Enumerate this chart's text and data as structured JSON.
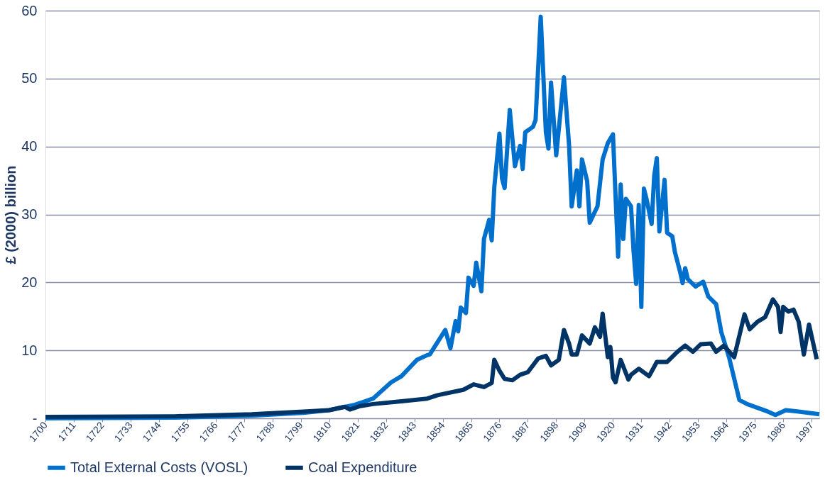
{
  "chart_data": {
    "type": "line",
    "ylabel": "£ (2000) billion",
    "xlim": [
      1700,
      2000
    ],
    "xticks": [
      1700,
      1711,
      1722,
      1733,
      1744,
      1755,
      1766,
      1777,
      1788,
      1799,
      1810,
      1821,
      1832,
      1843,
      1854,
      1865,
      1876,
      1887,
      1898,
      1909,
      1920,
      1931,
      1942,
      1953,
      1964,
      1975,
      1986,
      1997
    ],
    "ylim": [
      0,
      60
    ],
    "yticks": [
      {
        "value": 0,
        "label": "-"
      },
      10,
      20,
      30,
      40,
      50,
      60
    ],
    "grid": "y",
    "legend": "bottom",
    "line_style": "solid",
    "marker": "none",
    "series": [
      {
        "name": "Total External Costs (VOSL)",
        "color": "#0070cc",
        "x": [
          1700,
          1750,
          1780,
          1800,
          1810,
          1820,
          1827,
          1834,
          1838,
          1844,
          1848,
          1849,
          1855,
          1857,
          1859,
          1860,
          1861,
          1863,
          1864,
          1866,
          1867,
          1869,
          1870,
          1872,
          1873,
          1874,
          1876,
          1877,
          1878,
          1880,
          1882,
          1884,
          1885,
          1886,
          1889,
          1890,
          1892,
          1894,
          1895,
          1896,
          1898,
          1901,
          1903,
          1904,
          1906,
          1907,
          1908,
          1910,
          1911,
          1914,
          1916,
          1918,
          1920,
          1922,
          1923,
          1924,
          1925,
          1927,
          1928,
          1929,
          1930,
          1931,
          1932,
          1933,
          1935,
          1936,
          1937,
          1938,
          1940,
          1941,
          1943,
          1944,
          1946,
          1947,
          1948,
          1949,
          1952,
          1955,
          1957,
          1960,
          1962,
          1965,
          1969,
          1972,
          1980,
          1983,
          1987,
          1992,
          2000
        ],
        "values": [
          0,
          0.1,
          0.4,
          0.8,
          1.2,
          2,
          2.9,
          5.3,
          6.2,
          8.6,
          9.3,
          9.4,
          13,
          10.3,
          14.3,
          12.8,
          16.3,
          15.5,
          20.7,
          19.5,
          22.9,
          18.7,
          26.4,
          29.2,
          26.2,
          34,
          41.9,
          35.3,
          33.9,
          45.4,
          37.1,
          40.1,
          36.7,
          42.1,
          42.9,
          43.9,
          59.1,
          42.1,
          39.7,
          49.4,
          38.7,
          50.2,
          40.1,
          31.2,
          36.5,
          31.2,
          38.1,
          34.9,
          28.8,
          31.2,
          38.1,
          40.5,
          41.8,
          23.8,
          34.4,
          26.4,
          32.3,
          31.2,
          24.6,
          19.8,
          31.4,
          16.4,
          33.8,
          32.3,
          28.6,
          35.7,
          38.3,
          27.5,
          35.1,
          27.3,
          26.8,
          24.5,
          21.6,
          19.9,
          22.1,
          20.5,
          19.4,
          20.1,
          17.9,
          16.8,
          12.7,
          9,
          2.7,
          2.1,
          1,
          0.5,
          1.2,
          1,
          0.6
        ]
      },
      {
        "name": "Coal Expenditure",
        "color": "#003366",
        "x": [
          1700,
          1750,
          1780,
          1800,
          1810,
          1816,
          1818,
          1822,
          1827,
          1838,
          1848,
          1852,
          1862,
          1866,
          1870,
          1873,
          1874,
          1876,
          1878,
          1881,
          1884,
          1887,
          1891,
          1894,
          1896,
          1899,
          1901,
          1903,
          1904,
          1906,
          1908,
          1911,
          1913,
          1915,
          1916,
          1918,
          1919,
          1920,
          1921,
          1923,
          1926,
          1927,
          1930,
          1934,
          1937,
          1941,
          1945,
          1948,
          1951,
          1954,
          1958,
          1960,
          1963,
          1967,
          1971,
          1973,
          1976,
          1979,
          1982,
          1984,
          1985,
          1986,
          1988,
          1990,
          1992,
          1994,
          1996,
          1999
        ],
        "values": [
          0.2,
          0.3,
          0.6,
          1,
          1.2,
          1.7,
          1.3,
          1.8,
          2.1,
          2.5,
          2.9,
          3.4,
          4.2,
          5,
          4.6,
          5.2,
          8.6,
          7,
          5.8,
          5.6,
          6.4,
          6.8,
          8.8,
          9.2,
          7.8,
          8.6,
          13,
          11,
          9.4,
          9.4,
          12.2,
          11,
          13.4,
          12,
          15.4,
          9,
          10.5,
          6,
          5.3,
          8.6,
          5.7,
          6.4,
          7.3,
          6.2,
          8.3,
          8.3,
          9.8,
          10.7,
          9.8,
          10.9,
          11,
          9.8,
          10.7,
          9,
          15.3,
          13.1,
          14.2,
          14.9,
          17.5,
          16.4,
          12.7,
          16.4,
          15.7,
          16,
          14.2,
          9.4,
          13.8,
          8.7
        ]
      }
    ]
  }
}
